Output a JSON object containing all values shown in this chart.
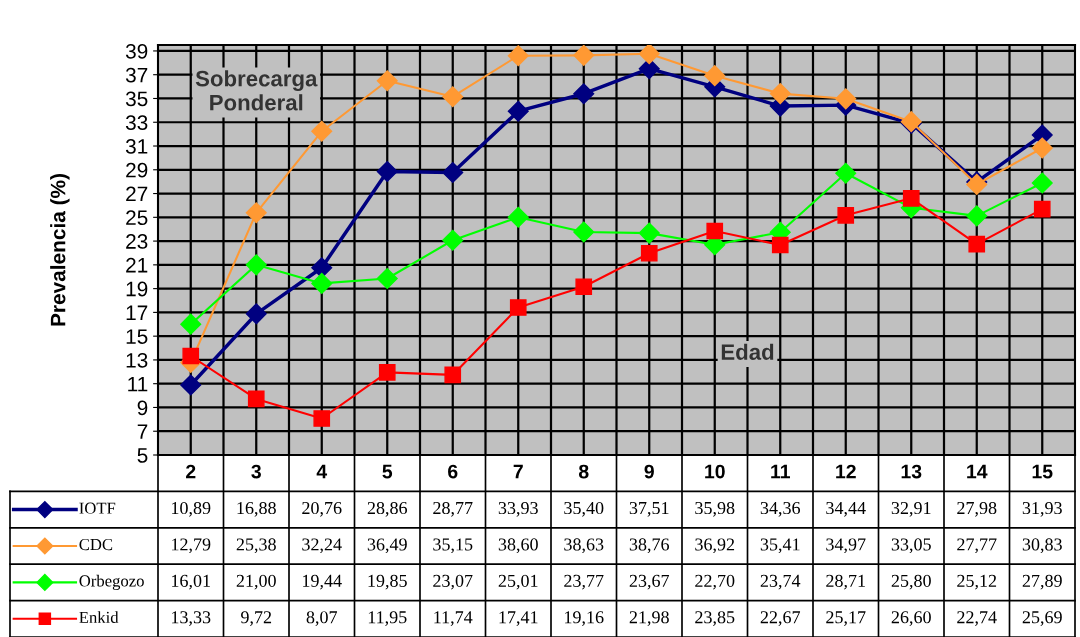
{
  "chart_data": {
    "type": "line",
    "ylabel": "Prevalencia (%)",
    "categories": [
      "2",
      "3",
      "4",
      "5",
      "6",
      "7",
      "8",
      "9",
      "10",
      "11",
      "12",
      "13",
      "14",
      "15"
    ],
    "series": [
      {
        "name": "IOTF",
        "color": "#000080",
        "marker": "diamond",
        "values": [
          10.89,
          16.88,
          20.76,
          28.86,
          28.77,
          33.93,
          35.4,
          37.51,
          35.98,
          34.36,
          34.44,
          32.91,
          27.98,
          31.93
        ],
        "value_labels": [
          "10,89",
          "16,88",
          "20,76",
          "28,86",
          "28,77",
          "33,93",
          "35,40",
          "37,51",
          "35,98",
          "34,36",
          "34,44",
          "32,91",
          "27,98",
          "31,93"
        ]
      },
      {
        "name": "CDC",
        "color": "#ff9933",
        "marker": "diamond",
        "values": [
          12.79,
          25.38,
          32.24,
          36.49,
          35.15,
          38.6,
          38.63,
          38.76,
          36.92,
          35.41,
          34.97,
          33.05,
          27.77,
          30.83
        ],
        "value_labels": [
          "12,79",
          "25,38",
          "32,24",
          "36,49",
          "35,15",
          "38,60",
          "38,63",
          "38,76",
          "36,92",
          "35,41",
          "34,97",
          "33,05",
          "27,77",
          "30,83"
        ]
      },
      {
        "name": "Orbegozo",
        "color": "#00ff00",
        "marker": "diamond",
        "values": [
          16.01,
          21.0,
          19.44,
          19.85,
          23.07,
          25.01,
          23.77,
          23.67,
          22.7,
          23.74,
          28.71,
          25.8,
          25.12,
          27.89
        ],
        "value_labels": [
          "16,01",
          "21,00",
          "19,44",
          "19,85",
          "23,07",
          "25,01",
          "23,77",
          "23,67",
          "22,70",
          "23,74",
          "28,71",
          "25,80",
          "25,12",
          "27,89"
        ]
      },
      {
        "name": "Enkid",
        "color": "#ff0000",
        "marker": "square",
        "values": [
          13.33,
          9.72,
          8.07,
          11.95,
          11.74,
          17.41,
          19.16,
          21.98,
          23.85,
          22.67,
          25.17,
          26.6,
          22.74,
          25.69
        ],
        "value_labels": [
          "13,33",
          "9,72",
          "8,07",
          "11,95",
          "11,74",
          "17,41",
          "19,16",
          "21,98",
          "23,85",
          "22,67",
          "25,17",
          "26,60",
          "22,74",
          "25,69"
        ]
      }
    ],
    "ylim": [
      5,
      39.5
    ],
    "yticks": [
      5,
      7,
      9,
      11,
      13,
      15,
      17,
      19,
      21,
      23,
      25,
      27,
      29,
      31,
      33,
      35,
      37,
      39
    ],
    "grid": true,
    "legend": "bottom left",
    "annotations": [
      "Sobrecarga\nPonderal",
      "Edad"
    ]
  }
}
